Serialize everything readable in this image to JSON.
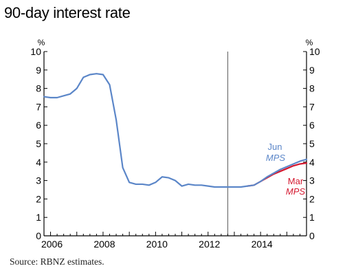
{
  "title": "90-day interest rate",
  "source": "Source: RBNZ estimates.",
  "chart_data": {
    "type": "line",
    "title": "90-day interest rate",
    "y_unit_left": "%",
    "y_unit_right": "%",
    "ylim": [
      0,
      10
    ],
    "xlim": [
      2005.75,
      2015.75
    ],
    "y_ticks": [
      "0",
      "1",
      "2",
      "3",
      "4",
      "5",
      "6",
      "7",
      "8",
      "9",
      "10"
    ],
    "x_ticks": [
      {
        "value": 2006,
        "label": "2006"
      },
      {
        "value": 2008,
        "label": "2008"
      },
      {
        "value": 2010,
        "label": "2010"
      },
      {
        "value": 2012,
        "label": "2012"
      },
      {
        "value": 2014,
        "label": "2014"
      }
    ],
    "vertical_line_at": 2012.75,
    "colors": {
      "jun": "#5b86c8",
      "mar": "#d4182f",
      "axis": "#000000"
    },
    "series": [
      {
        "name": "Jun MPS",
        "color": "#5b86c8",
        "x": [
          2005.75,
          2006.0,
          2006.25,
          2006.5,
          2006.75,
          2007.0,
          2007.25,
          2007.5,
          2007.75,
          2008.0,
          2008.25,
          2008.5,
          2008.75,
          2009.0,
          2009.25,
          2009.5,
          2009.75,
          2010.0,
          2010.25,
          2010.5,
          2010.75,
          2011.0,
          2011.25,
          2011.5,
          2011.75,
          2012.0,
          2012.25,
          2012.5,
          2012.75,
          2013.0,
          2013.25,
          2013.5,
          2013.75,
          2014.0,
          2014.25,
          2014.5,
          2014.75,
          2015.0,
          2015.25,
          2015.5,
          2015.75
        ],
        "y": [
          7.55,
          7.5,
          7.5,
          7.6,
          7.7,
          8.0,
          8.6,
          8.75,
          8.8,
          8.75,
          8.2,
          6.3,
          3.7,
          2.9,
          2.8,
          2.8,
          2.75,
          2.9,
          3.2,
          3.15,
          3.0,
          2.7,
          2.8,
          2.75,
          2.75,
          2.7,
          2.65,
          2.65,
          2.65,
          2.65,
          2.65,
          2.7,
          2.75,
          2.95,
          3.2,
          3.4,
          3.6,
          3.75,
          3.9,
          4.05,
          4.15
        ]
      },
      {
        "name": "Mar MPS",
        "color": "#d4182f",
        "x": [
          2013.5,
          2013.75,
          2014.0,
          2014.25,
          2014.5,
          2014.75,
          2015.0,
          2015.25,
          2015.5,
          2015.75
        ],
        "y": [
          2.7,
          2.75,
          2.95,
          3.15,
          3.35,
          3.5,
          3.65,
          3.8,
          3.9,
          3.95
        ]
      }
    ],
    "annotations": [
      {
        "label": "Jun",
        "color": "#5b86c8"
      },
      {
        "label": "MPS",
        "color": "#5b86c8",
        "italic": true
      },
      {
        "label": "Mar",
        "color": "#d4182f"
      },
      {
        "label": "MPS",
        "color": "#d4182f",
        "italic": true
      }
    ]
  }
}
